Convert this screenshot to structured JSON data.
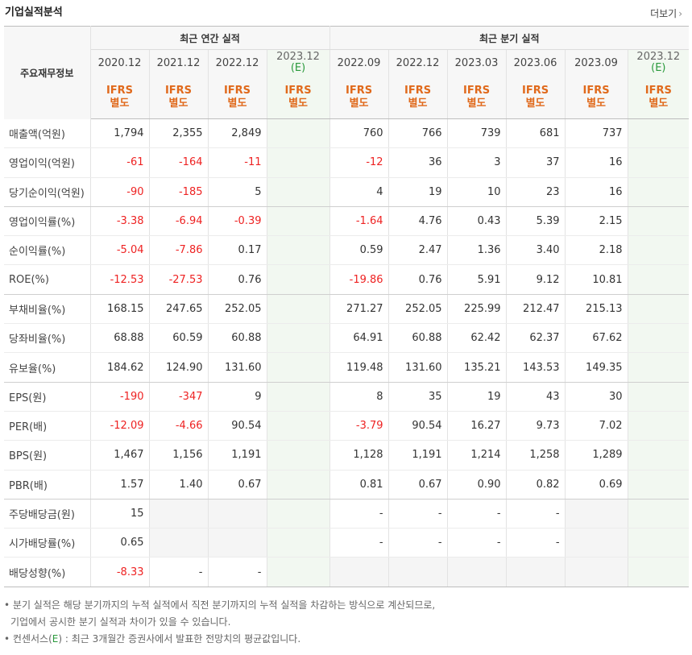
{
  "header": {
    "title": "기업실적분석",
    "more_label": "더보기",
    "more_icon": "chevron-right-icon"
  },
  "table": {
    "row_header": "주요재무정보",
    "annual_group": "최근 연간 실적",
    "quarter_group": "최근 분기 실적",
    "columns": [
      {
        "date": "2020.12",
        "est": "",
        "ifrs1": "IFRS",
        "ifrs2": "별도"
      },
      {
        "date": "2021.12",
        "est": "",
        "ifrs1": "IFRS",
        "ifrs2": "별도"
      },
      {
        "date": "2022.12",
        "est": "",
        "ifrs1": "IFRS",
        "ifrs2": "별도"
      },
      {
        "date": "2023.12",
        "est": "(E)",
        "ifrs1": "IFRS",
        "ifrs2": "별도"
      },
      {
        "date": "2022.09",
        "est": "",
        "ifrs1": "IFRS",
        "ifrs2": "별도"
      },
      {
        "date": "2022.12",
        "est": "",
        "ifrs1": "IFRS",
        "ifrs2": "별도"
      },
      {
        "date": "2023.03",
        "est": "",
        "ifrs1": "IFRS",
        "ifrs2": "별도"
      },
      {
        "date": "2023.06",
        "est": "",
        "ifrs1": "IFRS",
        "ifrs2": "별도"
      },
      {
        "date": "2023.09",
        "est": "",
        "ifrs1": "IFRS",
        "ifrs2": "별도"
      },
      {
        "date": "2023.12",
        "est": "(E)",
        "ifrs1": "IFRS",
        "ifrs2": "별도"
      }
    ],
    "rows": [
      {
        "label": "매출액(억원)",
        "values": [
          "1,794",
          "2,355",
          "2,849",
          "",
          "760",
          "766",
          "739",
          "681",
          "737",
          ""
        ]
      },
      {
        "label": "영업이익(억원)",
        "values": [
          "-61",
          "-164",
          "-11",
          "",
          "-12",
          "36",
          "3",
          "37",
          "16",
          ""
        ]
      },
      {
        "label": "당기순이익(억원)",
        "values": [
          "-90",
          "-185",
          "5",
          "",
          "4",
          "19",
          "10",
          "23",
          "16",
          ""
        ]
      },
      {
        "label": "영업이익률(%)",
        "values": [
          "-3.38",
          "-6.94",
          "-0.39",
          "",
          "-1.64",
          "4.76",
          "0.43",
          "5.39",
          "2.15",
          ""
        ]
      },
      {
        "label": "순이익률(%)",
        "values": [
          "-5.04",
          "-7.86",
          "0.17",
          "",
          "0.59",
          "2.47",
          "1.36",
          "3.40",
          "2.18",
          ""
        ]
      },
      {
        "label": "ROE(%)",
        "values": [
          "-12.53",
          "-27.53",
          "0.76",
          "",
          "-19.86",
          "0.76",
          "5.91",
          "9.12",
          "10.81",
          ""
        ]
      },
      {
        "label": "부채비율(%)",
        "values": [
          "168.15",
          "247.65",
          "252.05",
          "",
          "271.27",
          "252.05",
          "225.99",
          "212.47",
          "215.13",
          ""
        ]
      },
      {
        "label": "당좌비율(%)",
        "values": [
          "68.88",
          "60.59",
          "60.88",
          "",
          "64.91",
          "60.88",
          "62.42",
          "62.37",
          "67.62",
          ""
        ]
      },
      {
        "label": "유보율(%)",
        "values": [
          "184.62",
          "124.90",
          "131.60",
          "",
          "119.48",
          "131.60",
          "135.21",
          "143.53",
          "149.35",
          ""
        ]
      },
      {
        "label": "EPS(원)",
        "values": [
          "-190",
          "-347",
          "9",
          "",
          "8",
          "35",
          "19",
          "43",
          "30",
          ""
        ]
      },
      {
        "label": "PER(배)",
        "values": [
          "-12.09",
          "-4.66",
          "90.54",
          "",
          "-3.79",
          "90.54",
          "16.27",
          "9.73",
          "7.02",
          ""
        ]
      },
      {
        "label": "BPS(원)",
        "values": [
          "1,467",
          "1,156",
          "1,191",
          "",
          "1,128",
          "1,191",
          "1,214",
          "1,258",
          "1,289",
          ""
        ]
      },
      {
        "label": "PBR(배)",
        "values": [
          "1.57",
          "1.40",
          "0.67",
          "",
          "0.81",
          "0.67",
          "0.90",
          "0.82",
          "0.69",
          ""
        ]
      },
      {
        "label": "주당배당금(원)",
        "values": [
          "15",
          null,
          null,
          "",
          "-",
          "-",
          "-",
          "-",
          null,
          ""
        ]
      },
      {
        "label": "시가배당률(%)",
        "values": [
          "0.65",
          null,
          null,
          "",
          "-",
          "-",
          "-",
          "-",
          null,
          ""
        ]
      },
      {
        "label": "배당성향(%)",
        "values": [
          "-8.33",
          "-",
          "-",
          "",
          null,
          null,
          null,
          null,
          null,
          ""
        ]
      }
    ]
  },
  "notes": {
    "line1": "분기 실적은 해당 분기까지의 누적 실적에서 직전 분기까지의 누적 실적을 차감하는 방식으로 계산되므로,",
    "line2": "기업에서 공시한 분기 실적과 차이가 있을 수 있습니다.",
    "line3_prefix": "컨센서스(",
    "line3_e": "E",
    "line3_suffix": ") : 최근 3개월간 증권사에서 발표한 전망치의 평균값입니다."
  },
  "colors": {
    "negative": "#ee2222",
    "ifrs": "#e0691b",
    "estimate_bg": "#f2f8f1",
    "estimate_text": "#2a9a3c"
  }
}
